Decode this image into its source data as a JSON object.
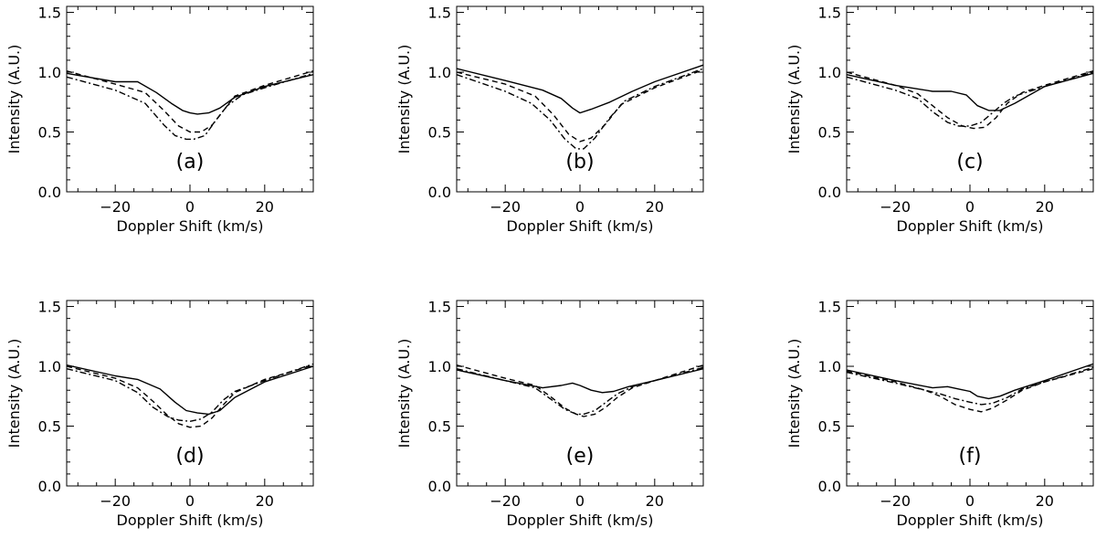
{
  "chart_data": [
    {
      "type": "line",
      "panel_label": "(a)",
      "xlabel": "Doppler Shift (km/s)",
      "ylabel": "Intensity (A.U.)",
      "xlim": [
        -33,
        33
      ],
      "ylim": [
        0,
        1.55
      ],
      "xticks": [
        -20,
        0,
        20
      ],
      "xtick_labels": [
        "−20",
        "0",
        "20"
      ],
      "yticks": [
        0,
        0.5,
        1.0,
        1.5
      ],
      "ytick_labels": [
        "0.0",
        "0.5",
        "1.0",
        "1.5"
      ],
      "series": [
        {
          "name": "solid",
          "style": "solid",
          "x": [
            -33,
            -20,
            -14,
            -9,
            -5,
            -2,
            0,
            2,
            5,
            8,
            12,
            20,
            33
          ],
          "y": [
            0.99,
            0.92,
            0.92,
            0.83,
            0.74,
            0.68,
            0.66,
            0.65,
            0.66,
            0.7,
            0.79,
            0.88,
            0.98
          ]
        },
        {
          "name": "dashed",
          "style": "dashed",
          "x": [
            -33,
            -20,
            -12,
            -7,
            -3,
            0,
            3,
            6,
            9,
            12,
            20,
            33
          ],
          "y": [
            1.01,
            0.9,
            0.83,
            0.68,
            0.55,
            0.5,
            0.5,
            0.56,
            0.68,
            0.8,
            0.89,
            1.01
          ]
        },
        {
          "name": "dash-dot",
          "style": "dashdot",
          "x": [
            -33,
            -20,
            -12,
            -7,
            -4,
            -1,
            1,
            4,
            7,
            10,
            14,
            20,
            33
          ],
          "y": [
            0.96,
            0.85,
            0.74,
            0.56,
            0.47,
            0.44,
            0.44,
            0.47,
            0.6,
            0.72,
            0.81,
            0.87,
            0.99
          ]
        }
      ]
    },
    {
      "type": "line",
      "panel_label": "(b)",
      "xlabel": "Doppler Shift (km/s)",
      "ylabel": "Intensity (A.U.)",
      "xlim": [
        -33,
        33
      ],
      "ylim": [
        0,
        1.55
      ],
      "xticks": [
        -20,
        0,
        20
      ],
      "xtick_labels": [
        "−20",
        "0",
        "20"
      ],
      "yticks": [
        0,
        0.5,
        1.0,
        1.5
      ],
      "ytick_labels": [
        "0.0",
        "0.5",
        "1.0",
        "1.5"
      ],
      "series": [
        {
          "name": "solid",
          "style": "solid",
          "x": [
            -33,
            -20,
            -10,
            -5,
            -2,
            0,
            3,
            8,
            14,
            20,
            33
          ],
          "y": [
            1.03,
            0.93,
            0.85,
            0.78,
            0.7,
            0.66,
            0.69,
            0.75,
            0.84,
            0.92,
            1.06
          ]
        },
        {
          "name": "dashed",
          "style": "dashed",
          "x": [
            -33,
            -20,
            -12,
            -7,
            -3,
            0,
            3,
            7,
            11,
            20,
            33
          ],
          "y": [
            1.0,
            0.9,
            0.8,
            0.64,
            0.48,
            0.42,
            0.45,
            0.57,
            0.73,
            0.87,
            1.02
          ]
        },
        {
          "name": "dash-dot",
          "style": "dashdot",
          "x": [
            -33,
            -20,
            -13,
            -8,
            -4,
            -1,
            1,
            4,
            8,
            12,
            20,
            33
          ],
          "y": [
            0.98,
            0.84,
            0.74,
            0.6,
            0.44,
            0.36,
            0.36,
            0.45,
            0.62,
            0.76,
            0.88,
            1.03
          ]
        }
      ]
    },
    {
      "type": "line",
      "panel_label": "(c)",
      "xlabel": "Doppler Shift (km/s)",
      "ylabel": "Intensity (A.U.)",
      "xlim": [
        -33,
        33
      ],
      "ylim": [
        0,
        1.55
      ],
      "xticks": [
        -20,
        0,
        20
      ],
      "xtick_labels": [
        "−20",
        "0",
        "20"
      ],
      "yticks": [
        0,
        0.5,
        1.0,
        1.5
      ],
      "ytick_labels": [
        "0.0",
        "0.5",
        "1.0",
        "1.5"
      ],
      "series": [
        {
          "name": "solid",
          "style": "solid",
          "x": [
            -33,
            -20,
            -10,
            -5,
            -1,
            2,
            5,
            8,
            12,
            20,
            33
          ],
          "y": [
            0.98,
            0.89,
            0.84,
            0.84,
            0.81,
            0.72,
            0.68,
            0.68,
            0.74,
            0.88,
            0.99
          ]
        },
        {
          "name": "dashed",
          "style": "dashed",
          "x": [
            -33,
            -20,
            -14,
            -10,
            -6,
            -2,
            1,
            4,
            7,
            10,
            14,
            20,
            33
          ],
          "y": [
            1.0,
            0.89,
            0.82,
            0.72,
            0.62,
            0.55,
            0.53,
            0.54,
            0.62,
            0.74,
            0.83,
            0.89,
            1.01
          ]
        },
        {
          "name": "dash-dot",
          "style": "dashdot",
          "x": [
            -33,
            -20,
            -14,
            -10,
            -6,
            -3,
            0,
            3,
            6,
            9,
            12,
            20,
            33
          ],
          "y": [
            0.96,
            0.85,
            0.78,
            0.67,
            0.58,
            0.55,
            0.55,
            0.58,
            0.66,
            0.74,
            0.8,
            0.88,
            1.0
          ]
        }
      ]
    },
    {
      "type": "line",
      "panel_label": "(d)",
      "xlabel": "Doppler Shift (km/s)",
      "ylabel": "Intensity (A.U.)",
      "xlim": [
        -33,
        33
      ],
      "ylim": [
        0,
        1.55
      ],
      "xticks": [
        -20,
        0,
        20
      ],
      "xtick_labels": [
        "−20",
        "0",
        "20"
      ],
      "yticks": [
        0,
        0.5,
        1.0,
        1.5
      ],
      "ytick_labels": [
        "0.0",
        "0.5",
        "1.0",
        "1.5"
      ],
      "series": [
        {
          "name": "solid",
          "style": "solid",
          "x": [
            -33,
            -20,
            -14,
            -8,
            -4,
            -1,
            2,
            5,
            8,
            12,
            20,
            33
          ],
          "y": [
            1.01,
            0.92,
            0.89,
            0.81,
            0.7,
            0.63,
            0.61,
            0.6,
            0.63,
            0.74,
            0.87,
            1.0
          ]
        },
        {
          "name": "dashed",
          "style": "dashed",
          "x": [
            -33,
            -20,
            -14,
            -10,
            -6,
            -3,
            0,
            3,
            6,
            9,
            12,
            20,
            33
          ],
          "y": [
            1.0,
            0.9,
            0.82,
            0.71,
            0.59,
            0.52,
            0.49,
            0.5,
            0.57,
            0.68,
            0.78,
            0.89,
            1.01
          ]
        },
        {
          "name": "dash-dot",
          "style": "dashdot",
          "x": [
            -33,
            -20,
            -14,
            -10,
            -6,
            -3,
            0,
            3,
            6,
            9,
            12,
            20,
            33
          ],
          "y": [
            0.98,
            0.88,
            0.78,
            0.66,
            0.58,
            0.55,
            0.54,
            0.56,
            0.62,
            0.72,
            0.79,
            0.88,
            1.02
          ]
        }
      ]
    },
    {
      "type": "line",
      "panel_label": "(e)",
      "xlabel": "Doppler Shift (km/s)",
      "ylabel": "Intensity (A.U.)",
      "xlim": [
        -33,
        33
      ],
      "ylim": [
        0,
        1.55
      ],
      "xticks": [
        -20,
        0,
        20
      ],
      "xtick_labels": [
        "−20",
        "0",
        "20"
      ],
      "yticks": [
        0,
        0.5,
        1.0,
        1.5
      ],
      "ytick_labels": [
        "0.0",
        "0.5",
        "1.0",
        "1.5"
      ],
      "series": [
        {
          "name": "solid",
          "style": "solid",
          "x": [
            -33,
            -20,
            -10,
            -5,
            -2,
            0,
            3,
            6,
            9,
            13,
            20,
            33
          ],
          "y": [
            0.97,
            0.88,
            0.82,
            0.84,
            0.86,
            0.84,
            0.8,
            0.78,
            0.79,
            0.83,
            0.88,
            0.98
          ]
        },
        {
          "name": "dashed",
          "style": "dashed",
          "x": [
            -33,
            -20,
            -12,
            -8,
            -4,
            -1,
            1,
            4,
            7,
            10,
            14,
            20,
            33
          ],
          "y": [
            1.01,
            0.9,
            0.84,
            0.75,
            0.65,
            0.6,
            0.58,
            0.6,
            0.66,
            0.74,
            0.82,
            0.88,
            1.01
          ]
        },
        {
          "name": "dash-dot",
          "style": "dashdot",
          "x": [
            -33,
            -20,
            -12,
            -8,
            -4,
            -1,
            1,
            4,
            7,
            10,
            14,
            20,
            33
          ],
          "y": [
            0.98,
            0.88,
            0.82,
            0.73,
            0.64,
            0.6,
            0.6,
            0.63,
            0.7,
            0.77,
            0.83,
            0.88,
            0.99
          ]
        }
      ]
    },
    {
      "type": "line",
      "panel_label": "(f)",
      "xlabel": "Doppler Shift (km/s)",
      "ylabel": "Intensity (A.U.)",
      "xlim": [
        -33,
        33
      ],
      "ylim": [
        0,
        1.55
      ],
      "xticks": [
        -20,
        0,
        20
      ],
      "xtick_labels": [
        "−20",
        "0",
        "20"
      ],
      "yticks": [
        0,
        0.5,
        1.0,
        1.5
      ],
      "ytick_labels": [
        "0.0",
        "0.5",
        "1.0",
        "1.5"
      ],
      "series": [
        {
          "name": "solid",
          "style": "solid",
          "x": [
            -33,
            -20,
            -10,
            -6,
            -3,
            0,
            2,
            5,
            8,
            12,
            20,
            33
          ],
          "y": [
            0.97,
            0.88,
            0.82,
            0.83,
            0.81,
            0.79,
            0.75,
            0.73,
            0.75,
            0.8,
            0.88,
            1.02
          ]
        },
        {
          "name": "dashed",
          "style": "dashed",
          "x": [
            -33,
            -20,
            -12,
            -8,
            -4,
            0,
            3,
            6,
            10,
            14,
            20,
            33
          ],
          "y": [
            0.96,
            0.87,
            0.8,
            0.75,
            0.68,
            0.64,
            0.62,
            0.65,
            0.72,
            0.8,
            0.87,
            0.98
          ]
        },
        {
          "name": "dash-dot",
          "style": "dashdot",
          "x": [
            -33,
            -20,
            -12,
            -8,
            -4,
            0,
            3,
            6,
            10,
            14,
            20,
            33
          ],
          "y": [
            0.95,
            0.86,
            0.8,
            0.77,
            0.73,
            0.7,
            0.68,
            0.69,
            0.74,
            0.81,
            0.87,
            0.99
          ]
        }
      ]
    }
  ]
}
